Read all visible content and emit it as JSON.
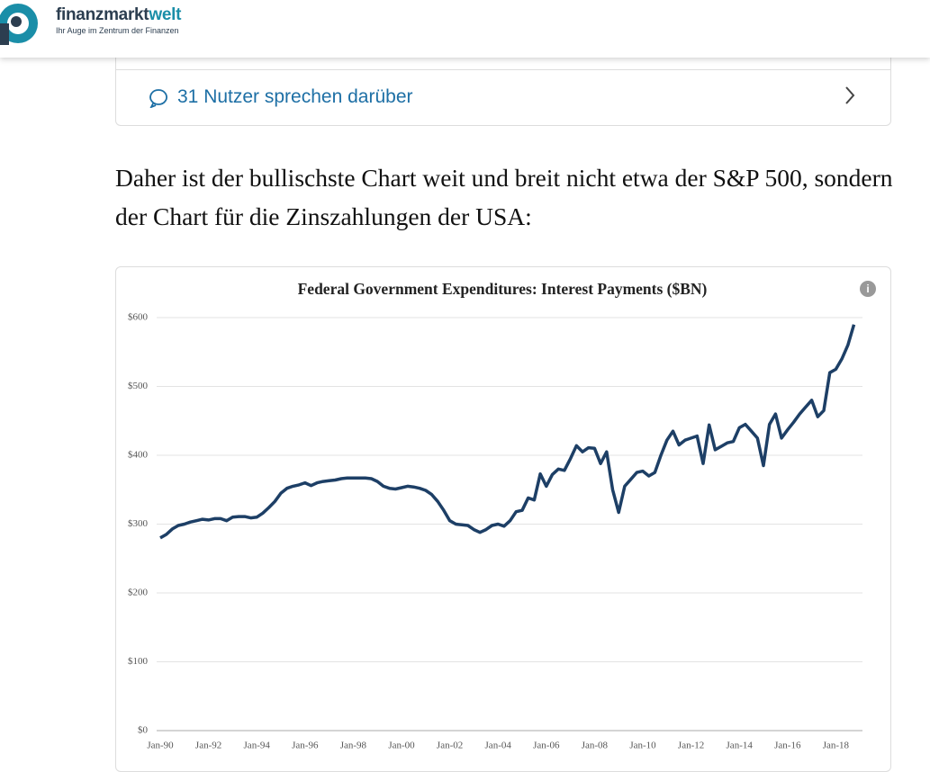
{
  "header": {
    "brand_main": "finanzmarkt",
    "brand_accent": "welt",
    "tagline": "Ihr Auge im Zentrum der Finanzen"
  },
  "comments": {
    "label": "31 Nutzer sprechen darüber"
  },
  "article": {
    "paragraph": "Daher ist der bullischste Chart weit und breit nicht etwa der S&P 500, sondern der Chart für die Zinszahlungen der USA:"
  },
  "chart_data": {
    "type": "line",
    "title": "Federal Government Expenditures: Interest Payments ($BN)",
    "color": "#1d3f66",
    "categories": [
      "Jan-90",
      null,
      null,
      null,
      null,
      null,
      null,
      null,
      "Jan-92",
      null,
      null,
      null,
      null,
      null,
      null,
      null,
      "Jan-94",
      null,
      null,
      null,
      null,
      null,
      null,
      null,
      "Jan-96",
      null,
      null,
      null,
      null,
      null,
      null,
      null,
      "Jan-98",
      null,
      null,
      null,
      null,
      null,
      null,
      null,
      "Jan-00",
      null,
      null,
      null,
      null,
      null,
      null,
      null,
      "Jan-02",
      null,
      null,
      null,
      null,
      null,
      null,
      null,
      "Jan-04",
      null,
      null,
      null,
      null,
      null,
      null,
      null,
      "Jan-06",
      null,
      null,
      null,
      null,
      null,
      null,
      null,
      "Jan-08",
      null,
      null,
      null,
      null,
      null,
      null,
      null,
      "Jan-10",
      null,
      null,
      null,
      null,
      null,
      null,
      null,
      "Jan-12",
      null,
      null,
      null,
      null,
      null,
      null,
      null,
      "Jan-14",
      null,
      null,
      null,
      null,
      null,
      null,
      null,
      "Jan-16",
      null,
      null,
      null,
      null,
      null,
      null,
      null,
      "Jan-18",
      null,
      null,
      null
    ],
    "values": [
      280,
      285,
      293,
      298,
      300,
      303,
      305,
      307,
      306,
      308,
      308,
      305,
      310,
      311,
      311,
      309,
      310,
      316,
      324,
      333,
      345,
      352,
      355,
      357,
      360,
      356,
      360,
      362,
      363,
      364,
      366,
      367,
      367,
      367,
      367,
      366,
      362,
      355,
      352,
      351,
      353,
      355,
      354,
      352,
      349,
      343,
      333,
      320,
      305,
      300,
      299,
      298,
      292,
      288,
      292,
      298,
      300,
      297,
      305,
      318,
      320,
      338,
      335,
      373,
      355,
      372,
      380,
      378,
      395,
      414,
      405,
      411,
      410,
      388,
      405,
      350,
      317,
      355,
      365,
      375,
      377,
      370,
      375,
      400,
      422,
      435,
      415,
      422,
      425,
      428,
      388,
      444,
      408,
      413,
      418,
      420,
      440,
      445,
      435,
      425,
      385,
      445,
      460,
      425,
      437,
      448,
      460,
      470,
      480,
      456,
      465,
      520,
      525,
      540,
      560,
      590
    ],
    "ylim": [
      0,
      600
    ],
    "yticks": [
      {
        "value": 0,
        "label": "$0"
      },
      {
        "value": 100,
        "label": "$100"
      },
      {
        "value": 200,
        "label": "$200"
      },
      {
        "value": 300,
        "label": "$300"
      },
      {
        "value": 400,
        "label": "$400"
      },
      {
        "value": 500,
        "label": "$500"
      },
      {
        "value": 600,
        "label": "$600"
      }
    ],
    "grid": true
  }
}
